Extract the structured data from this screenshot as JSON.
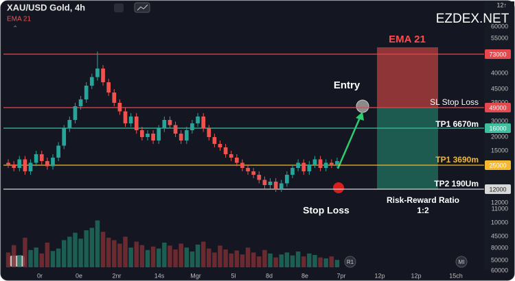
{
  "header": {
    "symbol": "XAU/USD  Gold, 4h",
    "indicator": "EMA 21",
    "corner": "12↑"
  },
  "watermark": "EZDEX.NET",
  "price_axis": [
    "60000",
    "55000",
    "40000",
    "45000",
    "38000",
    "30000",
    "20000",
    "15000",
    "12000",
    "11000",
    "10000",
    "45000",
    "80000",
    "50000",
    "60000"
  ],
  "levels": [
    {
      "label": "73000",
      "color": "#e5484d"
    },
    {
      "label": "49000",
      "color": "#e5484d"
    },
    {
      "label": "16000",
      "color": "#3fbf9f"
    },
    {
      "label": "25000",
      "color": "#f5b82e"
    },
    {
      "label": "12000",
      "color": "#d8d8d8"
    }
  ],
  "annotations": {
    "ema_box": "EMA 21",
    "entry": "Entry",
    "stop_loss": "Stop Loss",
    "sl_label": "SL Stop Loss",
    "tp1_a": "TP1 6670m",
    "tp1_b": "TP1 3690m",
    "tp2": "TP2 190Um",
    "rr_title": "Risk-Reward Ratio",
    "rr_value": "1:2",
    "badge_r": "R1",
    "badge_m": "MI"
  },
  "x_axis": [
    "0r",
    "0e",
    "2nr",
    "14s",
    "Mgr",
    "5l",
    "8d",
    "8e",
    "7pr",
    "12p",
    "12p",
    "15ch"
  ],
  "chart": {
    "type": "candlestick",
    "ylim": [
      0,
      100
    ],
    "candles": [
      [
        25,
        27,
        22,
        24
      ],
      [
        24,
        26,
        20,
        22
      ],
      [
        22,
        29,
        20,
        27
      ],
      [
        27,
        29,
        18,
        20
      ],
      [
        20,
        27,
        18,
        25
      ],
      [
        25,
        32,
        23,
        30
      ],
      [
        30,
        32,
        24,
        26
      ],
      [
        26,
        28,
        21,
        23
      ],
      [
        23,
        30,
        21,
        28
      ],
      [
        28,
        37,
        26,
        35
      ],
      [
        35,
        47,
        33,
        45
      ],
      [
        45,
        52,
        43,
        50
      ],
      [
        50,
        60,
        48,
        58
      ],
      [
        58,
        64,
        56,
        62
      ],
      [
        62,
        72,
        60,
        70
      ],
      [
        70,
        77,
        68,
        75
      ],
      [
        75,
        90,
        73,
        80
      ],
      [
        80,
        82,
        70,
        72
      ],
      [
        72,
        74,
        64,
        66
      ],
      [
        66,
        68,
        58,
        60
      ],
      [
        60,
        62,
        53,
        55
      ],
      [
        55,
        57,
        46,
        48
      ],
      [
        48,
        54,
        46,
        52
      ],
      [
        52,
        54,
        42,
        44
      ],
      [
        44,
        46,
        38,
        40
      ],
      [
        40,
        44,
        38,
        42
      ],
      [
        42,
        44,
        36,
        38
      ],
      [
        38,
        47,
        36,
        45
      ],
      [
        45,
        52,
        43,
        50
      ],
      [
        50,
        52,
        45,
        47
      ],
      [
        47,
        49,
        40,
        42
      ],
      [
        42,
        44,
        36,
        38
      ],
      [
        38,
        46,
        36,
        44
      ],
      [
        44,
        50,
        42,
        48
      ],
      [
        48,
        54,
        46,
        52
      ],
      [
        52,
        54,
        43,
        45
      ],
      [
        45,
        47,
        38,
        40
      ],
      [
        40,
        42,
        34,
        36
      ],
      [
        36,
        38,
        32,
        34
      ],
      [
        34,
        36,
        28,
        30
      ],
      [
        30,
        32,
        26,
        28
      ],
      [
        28,
        30,
        23,
        25
      ],
      [
        25,
        27,
        20,
        22
      ],
      [
        22,
        24,
        18,
        20
      ],
      [
        20,
        22,
        16,
        18
      ],
      [
        18,
        20,
        13,
        15
      ],
      [
        15,
        17,
        10,
        12
      ],
      [
        12,
        16,
        10,
        14
      ],
      [
        14,
        16,
        8,
        10
      ],
      [
        10,
        15,
        8,
        13
      ],
      [
        13,
        20,
        11,
        18
      ],
      [
        18,
        24,
        16,
        22
      ],
      [
        22,
        27,
        20,
        25
      ],
      [
        25,
        27,
        18,
        20
      ],
      [
        20,
        26,
        18,
        24
      ],
      [
        24,
        29,
        22,
        27
      ],
      [
        27,
        29,
        20,
        22
      ],
      [
        22,
        27,
        20,
        25
      ],
      [
        25,
        27,
        22,
        24
      ],
      [
        24,
        28,
        22,
        26
      ]
    ],
    "volume_lim": [
      0,
      100
    ],
    "volume": [
      30,
      45,
      25,
      60,
      35,
      40,
      28,
      50,
      33,
      38,
      55,
      62,
      70,
      58,
      75,
      80,
      95,
      72,
      60,
      55,
      48,
      62,
      40,
      52,
      45,
      35,
      42,
      38,
      50,
      44,
      36,
      48,
      40,
      32,
      46,
      52,
      38,
      30,
      44,
      36,
      28,
      34,
      26,
      40,
      30,
      22,
      35,
      28,
      20,
      26,
      30,
      24,
      32,
      22,
      28,
      25,
      20,
      18,
      22,
      15
    ]
  }
}
